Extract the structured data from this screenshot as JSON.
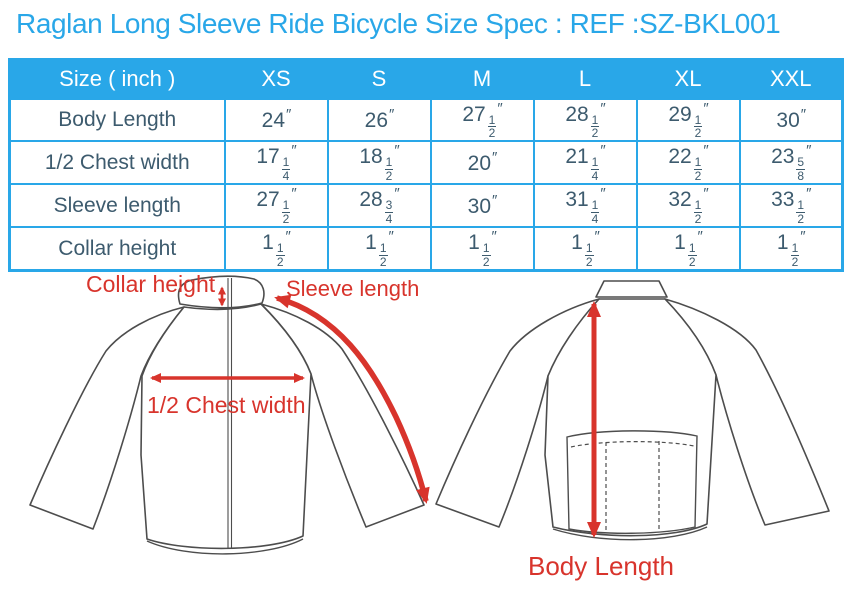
{
  "title": "Raglan Long Sleeve Ride Bicycle Size Spec : REF :SZ-BKL001",
  "colors": {
    "accent_blue": "#29a7e8",
    "cell_text": "#3d5b6e",
    "annotation_red": "#d8342c",
    "outline_gray": "#4d4d4d"
  },
  "size_table": {
    "header": [
      "Size ( inch )",
      "XS",
      "S",
      "M",
      "L",
      "XL",
      "XXL"
    ],
    "rows": [
      {
        "label": "Body Length",
        "values": [
          "24\"",
          "26\"",
          "27 1/2\"",
          "28 1/2\"",
          "29 1/2\"",
          "30\""
        ]
      },
      {
        "label": "1/2 Chest width",
        "values": [
          "17 1/4\"",
          "18 1/2\"",
          "20\"",
          "21 1/4\"",
          "22 1/2\"",
          "23 5/8\""
        ]
      },
      {
        "label": "Sleeve length",
        "values": [
          "27 1/2\"",
          "28 3/4\"",
          "30\"",
          "31 1/4\"",
          "32 1/2\"",
          "33 1/2\""
        ]
      },
      {
        "label": "Collar height",
        "values": [
          "1 1/2\"",
          "1 1/2\"",
          "1 1/2\"",
          "1 1/2\"",
          "1 1/2\"",
          "1 1/2\""
        ]
      }
    ]
  },
  "diagram_labels": {
    "collar_height": "Collar height",
    "sleeve_length": "Sleeve length",
    "chest_width": "1/2 Chest width",
    "body_length": "Body Length"
  }
}
